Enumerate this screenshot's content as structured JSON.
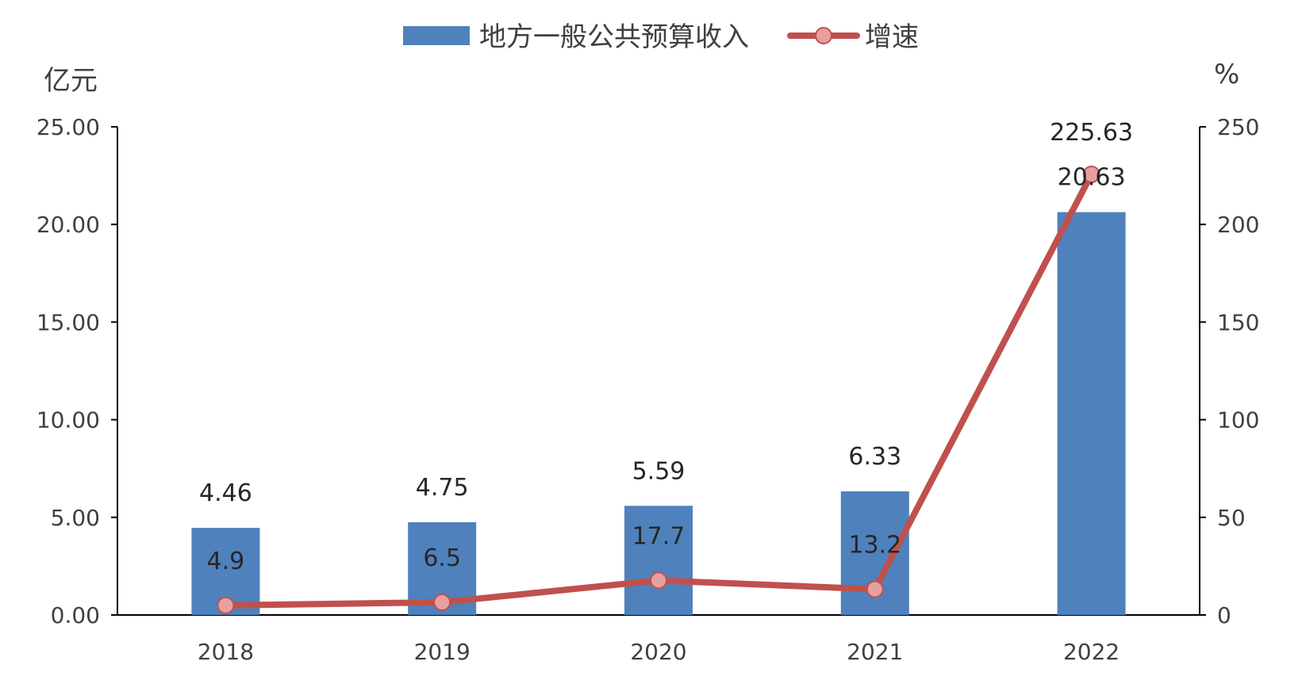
{
  "chart_data": {
    "type": "bar+line",
    "categories": [
      "2018",
      "2019",
      "2020",
      "2021",
      "2022"
    ],
    "series": [
      {
        "name": "地方一般公共预算收入",
        "type": "bar",
        "axis": "left",
        "values": [
          4.46,
          4.75,
          5.59,
          6.33,
          20.63
        ],
        "labels": [
          "4.46",
          "4.75",
          "5.59",
          "6.33",
          "20.63"
        ]
      },
      {
        "name": "增速",
        "type": "line",
        "axis": "right",
        "values": [
          4.9,
          6.5,
          17.7,
          13.2,
          225.63
        ],
        "labels": [
          "4.9",
          "6.5",
          "17.7",
          "13.2",
          "225.63"
        ]
      }
    ],
    "y_left": {
      "unit": "亿元",
      "range": [
        0,
        25
      ],
      "ticks": [
        "0.00",
        "5.00",
        "10.00",
        "15.00",
        "20.00",
        "25.00"
      ]
    },
    "y_right": {
      "unit": "%",
      "range": [
        0,
        250
      ],
      "ticks": [
        "0",
        "50",
        "100",
        "150",
        "200",
        "250"
      ]
    },
    "legend_position": "top-center",
    "grid": false,
    "colors": {
      "bar": "#4f81bd",
      "line": "#c0504d",
      "marker_fill": "#e6a0a0",
      "axis": "#000000"
    }
  }
}
